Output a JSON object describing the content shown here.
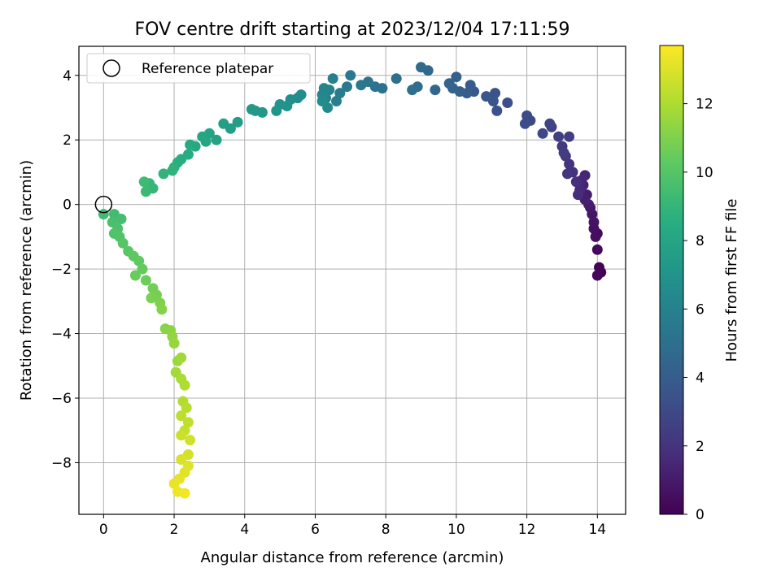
{
  "chart_data": {
    "type": "scatter",
    "title": "FOV centre drift starting at 2023/12/04 17:11:59",
    "xlabel": "Angular distance from reference (arcmin)",
    "ylabel": "Rotation from reference (arcmin)",
    "xlim": [
      -0.7,
      14.8
    ],
    "ylim": [
      -9.6,
      4.9
    ],
    "xticks": [
      0,
      2,
      4,
      6,
      8,
      10,
      12,
      14
    ],
    "yticks": [
      -8,
      -6,
      -4,
      -2,
      0,
      2,
      4
    ],
    "grid": true,
    "legend": {
      "position": "top-left",
      "entries": [
        "Reference platepar"
      ]
    },
    "reference_point": {
      "x": 0,
      "y": 0,
      "label": "Reference platepar"
    },
    "colorbar": {
      "label": "Hours from first FF file",
      "range": [
        0,
        13.7
      ],
      "ticks": [
        0,
        2,
        4,
        6,
        8,
        10,
        12
      ],
      "colormap": "viridis"
    },
    "points": [
      [
        14.1,
        -2.1,
        0.0
      ],
      [
        14.05,
        -1.95,
        0.1
      ],
      [
        14.0,
        -2.2,
        0.2
      ],
      [
        14.0,
        -1.4,
        0.3
      ],
      [
        14.0,
        -0.9,
        0.4
      ],
      [
        13.95,
        -1.0,
        0.5
      ],
      [
        13.9,
        -0.75,
        0.6
      ],
      [
        13.9,
        -0.55,
        0.7
      ],
      [
        13.85,
        -0.3,
        0.8
      ],
      [
        13.8,
        -0.1,
        0.9
      ],
      [
        13.75,
        0.0,
        1.0
      ],
      [
        13.7,
        0.3,
        1.1
      ],
      [
        13.65,
        0.15,
        1.2
      ],
      [
        13.6,
        0.6,
        1.3
      ],
      [
        13.65,
        0.9,
        1.4
      ],
      [
        13.55,
        0.75,
        1.5
      ],
      [
        13.5,
        0.45,
        1.6
      ],
      [
        13.45,
        0.3,
        1.7
      ],
      [
        13.4,
        0.7,
        1.8
      ],
      [
        13.3,
        1.0,
        1.9
      ],
      [
        13.2,
        1.25,
        2.0
      ],
      [
        13.15,
        0.95,
        2.1
      ],
      [
        13.1,
        1.5,
        2.2
      ],
      [
        13.0,
        1.8,
        2.3
      ],
      [
        13.05,
        1.6,
        2.4
      ],
      [
        13.2,
        2.1,
        2.5
      ],
      [
        12.9,
        2.1,
        2.6
      ],
      [
        12.7,
        2.4,
        2.7
      ],
      [
        12.65,
        2.5,
        2.8
      ],
      [
        12.45,
        2.2,
        2.9
      ],
      [
        12.1,
        2.6,
        3.0
      ],
      [
        12.0,
        2.75,
        3.1
      ],
      [
        11.95,
        2.5,
        3.2
      ],
      [
        11.45,
        3.15,
        3.3
      ],
      [
        11.15,
        2.9,
        3.4
      ],
      [
        11.1,
        3.45,
        3.5
      ],
      [
        11.05,
        3.2,
        3.6
      ],
      [
        10.85,
        3.35,
        3.7
      ],
      [
        10.5,
        3.5,
        3.8
      ],
      [
        10.4,
        3.7,
        3.9
      ],
      [
        10.3,
        3.45,
        4.0
      ],
      [
        10.1,
        3.5,
        4.1
      ],
      [
        10.0,
        3.95,
        4.2
      ],
      [
        9.9,
        3.6,
        4.3
      ],
      [
        9.8,
        3.75,
        4.4
      ],
      [
        9.4,
        3.55,
        4.5
      ],
      [
        9.2,
        4.15,
        4.6
      ],
      [
        9.0,
        4.25,
        4.7
      ],
      [
        8.9,
        3.65,
        4.8
      ],
      [
        8.75,
        3.55,
        4.9
      ],
      [
        8.3,
        3.9,
        5.0
      ],
      [
        7.9,
        3.6,
        5.1
      ],
      [
        7.7,
        3.65,
        5.2
      ],
      [
        7.5,
        3.8,
        5.3
      ],
      [
        7.3,
        3.7,
        5.4
      ],
      [
        7.0,
        4.0,
        5.5
      ],
      [
        6.9,
        3.65,
        5.6
      ],
      [
        6.7,
        3.45,
        5.7
      ],
      [
        6.6,
        3.2,
        5.8
      ],
      [
        6.5,
        3.9,
        5.9
      ],
      [
        6.4,
        3.55,
        6.0
      ],
      [
        6.3,
        3.3,
        6.1
      ],
      [
        6.25,
        3.6,
        6.2
      ],
      [
        6.2,
        3.4,
        6.3
      ],
      [
        6.35,
        3.0,
        6.4
      ],
      [
        6.2,
        3.2,
        6.5
      ],
      [
        5.6,
        3.4,
        6.6
      ],
      [
        5.5,
        3.3,
        6.7
      ],
      [
        5.3,
        3.25,
        6.8
      ],
      [
        5.2,
        3.05,
        6.9
      ],
      [
        5.0,
        3.1,
        7.0
      ],
      [
        4.9,
        2.9,
        7.1
      ],
      [
        4.5,
        2.85,
        7.2
      ],
      [
        4.3,
        2.9,
        7.3
      ],
      [
        4.2,
        2.95,
        7.4
      ],
      [
        3.8,
        2.55,
        7.5
      ],
      [
        3.6,
        2.35,
        7.6
      ],
      [
        3.4,
        2.5,
        7.7
      ],
      [
        3.2,
        2.0,
        7.8
      ],
      [
        3.0,
        2.2,
        7.9
      ],
      [
        2.9,
        1.95,
        8.0
      ],
      [
        2.8,
        2.1,
        8.1
      ],
      [
        2.6,
        1.8,
        8.2
      ],
      [
        2.45,
        1.85,
        8.3
      ],
      [
        2.4,
        1.55,
        8.4
      ],
      [
        2.2,
        1.4,
        8.5
      ],
      [
        2.1,
        1.3,
        8.6
      ],
      [
        2.0,
        1.15,
        8.7
      ],
      [
        1.95,
        1.05,
        8.8
      ],
      [
        1.7,
        0.95,
        8.9
      ],
      [
        1.4,
        0.5,
        9.0
      ],
      [
        1.3,
        0.65,
        9.1
      ],
      [
        1.2,
        0.4,
        9.2
      ],
      [
        1.15,
        0.7,
        9.3
      ],
      [
        0.0,
        -0.3,
        9.35
      ],
      [
        0.3,
        -0.3,
        9.4
      ],
      [
        0.5,
        -0.45,
        9.5
      ],
      [
        0.25,
        -0.55,
        9.6
      ],
      [
        0.4,
        -0.75,
        9.7
      ],
      [
        0.3,
        -0.9,
        9.8
      ],
      [
        0.45,
        -1.0,
        9.9
      ],
      [
        0.55,
        -1.2,
        10.0
      ],
      [
        0.7,
        -1.45,
        10.1
      ],
      [
        0.85,
        -1.6,
        10.2
      ],
      [
        1.0,
        -1.75,
        10.3
      ],
      [
        1.1,
        -2.0,
        10.4
      ],
      [
        0.9,
        -2.2,
        10.5
      ],
      [
        1.2,
        -2.35,
        10.6
      ],
      [
        1.4,
        -2.6,
        10.7
      ],
      [
        1.5,
        -2.8,
        10.8
      ],
      [
        1.35,
        -2.9,
        10.9
      ],
      [
        1.6,
        -3.05,
        11.0
      ],
      [
        1.65,
        -3.25,
        11.1
      ],
      [
        1.75,
        -3.85,
        11.2
      ],
      [
        1.9,
        -3.9,
        11.3
      ],
      [
        1.95,
        -4.1,
        11.4
      ],
      [
        2.0,
        -4.3,
        11.5
      ],
      [
        2.1,
        -4.85,
        11.6
      ],
      [
        2.2,
        -4.75,
        11.7
      ],
      [
        2.05,
        -5.2,
        11.8
      ],
      [
        2.2,
        -5.4,
        11.9
      ],
      [
        2.3,
        -5.6,
        12.0
      ],
      [
        2.25,
        -6.1,
        12.1
      ],
      [
        2.35,
        -6.3,
        12.2
      ],
      [
        2.2,
        -6.55,
        12.3
      ],
      [
        2.4,
        -6.75,
        12.4
      ],
      [
        2.3,
        -7.0,
        12.5
      ],
      [
        2.2,
        -7.15,
        12.6
      ],
      [
        2.45,
        -7.3,
        12.7
      ],
      [
        2.4,
        -7.75,
        12.8
      ],
      [
        2.2,
        -7.9,
        12.9
      ],
      [
        2.4,
        -8.1,
        13.0
      ],
      [
        2.3,
        -8.3,
        13.1
      ],
      [
        2.15,
        -8.5,
        13.2
      ],
      [
        2.0,
        -8.65,
        13.3
      ],
      [
        2.1,
        -8.9,
        13.4
      ],
      [
        2.3,
        -8.95,
        13.5
      ]
    ]
  }
}
